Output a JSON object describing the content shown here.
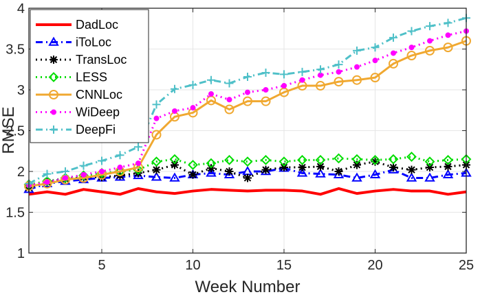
{
  "chart_data": {
    "type": "line",
    "title": "",
    "xlabel": "Week Number",
    "ylabel": "RMSE",
    "xlim": [
      1,
      25
    ],
    "ylim": [
      1,
      4
    ],
    "xticks": [
      5,
      10,
      15,
      20,
      25
    ],
    "yticks": [
      1,
      1.5,
      2,
      2.5,
      3,
      3.5,
      4
    ],
    "ytick_labels": [
      "1",
      "1.5",
      "2",
      "2.5",
      "3",
      "3.5",
      "4"
    ],
    "grid": true,
    "legend_position": "top-left",
    "x": [
      1,
      2,
      3,
      4,
      5,
      6,
      7,
      8,
      9,
      10,
      11,
      12,
      13,
      14,
      15,
      16,
      17,
      18,
      19,
      20,
      21,
      22,
      23,
      24,
      25
    ],
    "series": [
      {
        "name": "DadLoc",
        "color": "#ff0000",
        "marker": "none",
        "dash": "solid",
        "values": [
          1.72,
          1.75,
          1.72,
          1.78,
          1.75,
          1.72,
          1.79,
          1.75,
          1.73,
          1.76,
          1.78,
          1.77,
          1.76,
          1.77,
          1.77,
          1.76,
          1.72,
          1.79,
          1.73,
          1.76,
          1.78,
          1.76,
          1.76,
          1.72,
          1.75
        ]
      },
      {
        "name": "iToLoc",
        "color": "#0000ff",
        "marker": "triangle",
        "dash": "dashdot",
        "values": [
          1.78,
          1.85,
          1.88,
          1.9,
          1.92,
          1.93,
          1.95,
          1.93,
          1.92,
          1.96,
          1.98,
          1.96,
          2.0,
          2.0,
          2.04,
          1.98,
          1.97,
          1.96,
          1.92,
          1.96,
          2.02,
          1.92,
          1.92,
          1.96,
          1.98
        ]
      },
      {
        "name": "TransLoc",
        "color": "#000000",
        "marker": "asterisk",
        "dash": "dotted",
        "values": [
          1.8,
          1.87,
          1.91,
          1.93,
          1.93,
          1.95,
          1.98,
          2.02,
          2.08,
          1.96,
          2.04,
          2.0,
          1.92,
          2.02,
          2.05,
          2.05,
          2.06,
          2.0,
          2.08,
          2.12,
          2.05,
          2.02,
          2.05,
          2.06,
          2.08
        ]
      },
      {
        "name": "LESS",
        "color": "#00dd00",
        "marker": "diamond",
        "dash": "dotted",
        "values": [
          1.84,
          1.88,
          1.92,
          1.95,
          1.98,
          2.0,
          2.02,
          2.12,
          2.15,
          2.08,
          2.1,
          2.14,
          2.12,
          2.14,
          2.12,
          2.14,
          2.14,
          2.16,
          2.15,
          2.14,
          2.15,
          2.18,
          2.12,
          2.14,
          2.15
        ]
      },
      {
        "name": "CNNLoc",
        "color": "#f0a830",
        "marker": "circle",
        "dash": "solid",
        "values": [
          1.82,
          1.85,
          1.9,
          1.92,
          1.96,
          2.0,
          2.05,
          2.45,
          2.67,
          2.72,
          2.87,
          2.76,
          2.86,
          2.86,
          2.97,
          3.05,
          3.05,
          3.1,
          3.12,
          3.15,
          3.32,
          3.42,
          3.48,
          3.52,
          3.6
        ]
      },
      {
        "name": "WiDeep",
        "color": "#ff00ff",
        "marker": "dot",
        "dash": "dotted",
        "values": [
          1.83,
          1.87,
          1.92,
          1.96,
          2.0,
          2.05,
          2.1,
          2.65,
          2.74,
          2.78,
          2.95,
          2.88,
          2.97,
          3.0,
          3.05,
          3.12,
          3.18,
          3.22,
          3.28,
          3.36,
          3.45,
          3.52,
          3.6,
          3.67,
          3.72
        ]
      },
      {
        "name": "DeepFi",
        "color": "#4fc0c8",
        "marker": "plus",
        "dash": "dashdot",
        "values": [
          1.85,
          1.97,
          2.0,
          2.07,
          2.13,
          2.2,
          2.3,
          2.82,
          3.01,
          3.06,
          3.12,
          3.08,
          3.16,
          3.21,
          3.19,
          3.22,
          3.25,
          3.31,
          3.48,
          3.52,
          3.64,
          3.72,
          3.78,
          3.82,
          3.88
        ]
      }
    ]
  }
}
